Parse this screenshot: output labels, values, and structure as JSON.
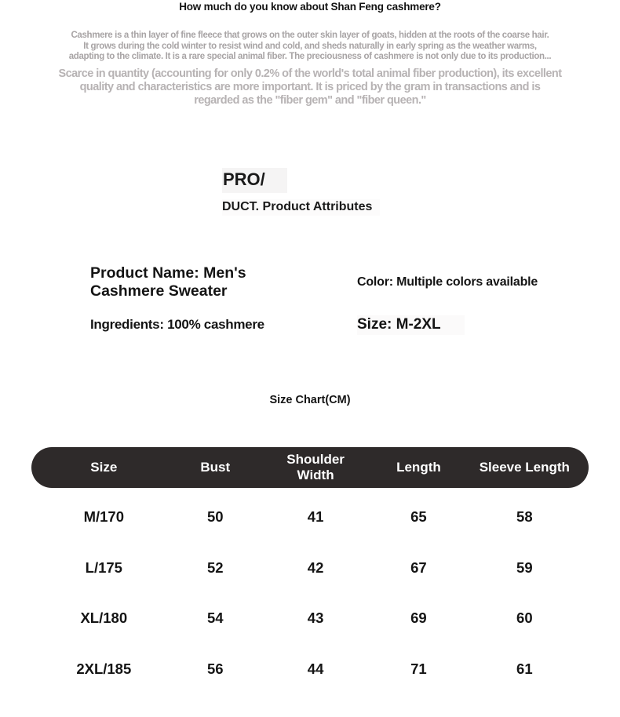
{
  "page": {
    "title": "How much do you know about Shan Feng cashmere?"
  },
  "intro": {
    "paragraph_small": "Cashmere is a thin layer of fine fleece that grows on the outer skin layer of goats, hidden at the roots of the coarse hair.\nIt grows during the cold winter to resist wind and cold, and sheds naturally in early spring as the weather warms,\nadapting to the climate. It is a rare special animal fiber. The preciousness of cashmere is not only due to its production...",
    "paragraph_large": "Scarce in quantity (accounting for only 0.2% of the world's total animal fiber production), its excellent\nquality and characteristics are more important. It is priced by the gram in transactions and is\nregarded as the \"fiber gem\" and \"fiber queen.\""
  },
  "product_section": {
    "heading_top": "PRO/",
    "heading_bottom": "DUCT. Product Attributes",
    "attributes": {
      "name": "Product Name: Men's\nCashmere Sweater",
      "color": "Color: Multiple colors available",
      "ingredients": "Ingredients: 100% cashmere",
      "size": "Size: M-2XL"
    }
  },
  "size_chart": {
    "title": "Size Chart(CM)",
    "columns": [
      "Size",
      "Bust",
      "Shoulder\nWidth",
      "Length",
      "Sleeve Length"
    ],
    "rows": [
      [
        "M/170",
        "50",
        "41",
        "65",
        "58"
      ],
      [
        "L/175",
        "52",
        "42",
        "67",
        "59"
      ],
      [
        "XL/180",
        "54",
        "43",
        "69",
        "60"
      ],
      [
        "2XL/185",
        "56",
        "44",
        "71",
        "61"
      ]
    ]
  },
  "colors": {
    "header_pill": "#2e2a2a",
    "text_primary": "#141414",
    "text_muted_small": "#a8a4a5",
    "text_muted_large": "#b7b3b4"
  }
}
